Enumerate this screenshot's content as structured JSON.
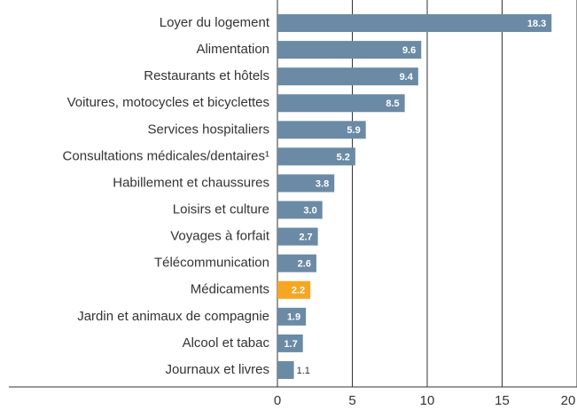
{
  "chart_data": {
    "type": "barh",
    "categories": [
      "Loyer du logement",
      "Alimentation",
      "Restaurants et hôtels",
      "Voitures, motocycles et bicyclettes",
      "Services hospitaliers",
      "Consultations médicales/dentaires¹",
      "Habillement et chaussures",
      "Loisirs et culture",
      "Voyages à forfait",
      "Télécommunication",
      "Médicaments",
      "Jardin et animaux de compagnie",
      "Alcool et tabac",
      "Journaux et livres"
    ],
    "values": [
      18.3,
      9.6,
      9.4,
      8.5,
      5.9,
      5.2,
      3.8,
      3.0,
      2.7,
      2.6,
      2.2,
      1.9,
      1.7,
      1.1
    ],
    "value_labels": [
      "18.3",
      "9.6",
      "9.4",
      "8.5",
      "5.9",
      "5.2",
      "3.8",
      "3.0",
      "2.7",
      "2.6",
      "2.2",
      "1.9",
      "1.7",
      "1.1"
    ],
    "colors": [
      "#6b8aa5",
      "#6b8aa5",
      "#6b8aa5",
      "#6b8aa5",
      "#6b8aa5",
      "#6b8aa5",
      "#6b8aa5",
      "#6b8aa5",
      "#6b8aa5",
      "#6b8aa5",
      "#f5a623",
      "#6b8aa5",
      "#6b8aa5",
      "#6b8aa5"
    ],
    "xlim": [
      0,
      20
    ],
    "xticks": [
      0,
      5,
      10,
      15,
      20
    ],
    "grid": true
  }
}
